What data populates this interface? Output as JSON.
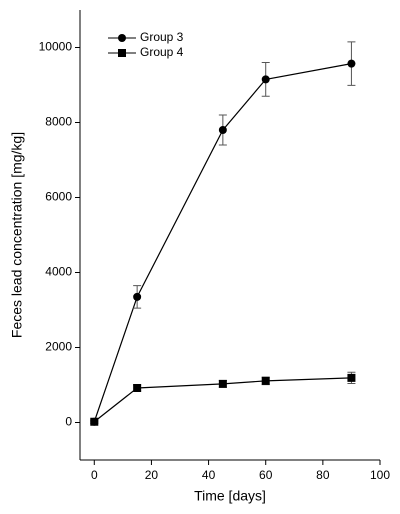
{
  "chart_data": {
    "type": "line",
    "x_label": "Time [days]",
    "y_label": "Feces lead concentration [mg/kg]",
    "x": [
      0,
      15,
      45,
      60,
      90
    ],
    "series": [
      {
        "name": "Group 3",
        "color": "#000000",
        "marker": "circle",
        "values": [
          20,
          3350,
          7800,
          9150,
          9570
        ],
        "errors": [
          40,
          300,
          400,
          450,
          580
        ]
      },
      {
        "name": "Group 4",
        "color": "#000000",
        "marker": "square",
        "values": [
          20,
          920,
          1030,
          1110,
          1190
        ],
        "errors": [
          40,
          80,
          90,
          100,
          150
        ]
      }
    ],
    "xlim": [
      -5,
      100
    ],
    "xticks": [
      0,
      20,
      40,
      60,
      80,
      100
    ],
    "ylim": [
      -1000,
      11000
    ],
    "yticks": [
      0,
      2000,
      4000,
      6000,
      8000,
      10000
    ],
    "legend": "upper left",
    "grid": false
  }
}
